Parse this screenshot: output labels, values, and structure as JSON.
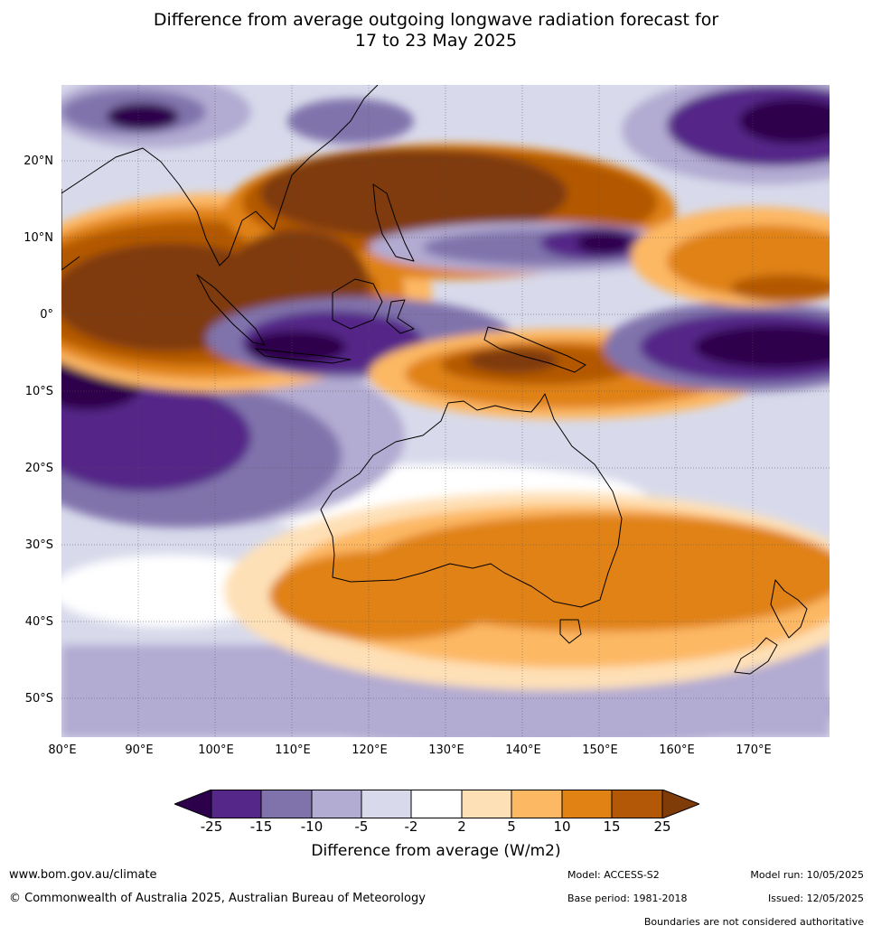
{
  "title": {
    "line1": "Difference from average outgoing longwave radiation forecast for",
    "line2": "17 to 23 May 2025"
  },
  "map": {
    "region": "Indian Ocean, Maritime Continent, Australia, Western Pacific",
    "lat_labels": [
      "20°N",
      "10°N",
      "0°",
      "10°S",
      "20°S",
      "30°S",
      "40°S",
      "50°S"
    ],
    "lon_labels": [
      "80°E",
      "90°E",
      "100°E",
      "110°E",
      "120°E",
      "130°E",
      "140°E",
      "150°E",
      "160°E",
      "170°E"
    ],
    "lat_range": [
      -55,
      30
    ],
    "lon_range": [
      80,
      180
    ]
  },
  "colorbar": {
    "ticks": [
      "-25",
      "-15",
      "-10",
      "-5",
      "-2",
      "2",
      "5",
      "10",
      "15",
      "25"
    ],
    "colors": {
      "lt_-25": "#2d004b",
      "-25_-15": "#542788",
      "-15_-10": "#8073ac",
      "-10_-5": "#b2abd2",
      "-5_-2": "#d8daeb",
      "-2_2": "#ffffff",
      "2_5": "#fee0b6",
      "5_10": "#fdb863",
      "10_15": "#e08214",
      "15_25": "#b35806",
      "gt_25": "#7f3b08"
    },
    "label": "Difference from average (W/m2)"
  },
  "footer": {
    "website": "www.bom.gov.au/climate",
    "copyright": "© Commonwealth of Australia 2025, Australian Bureau of Meteorology",
    "model": "Model: ACCESS-S2",
    "base_period": "Base period: 1981-2018",
    "model_run": "Model run: 10/05/2025",
    "issued": "Issued: 12/05/2025",
    "disclaimer": "Boundaries are not considered authoritative"
  }
}
